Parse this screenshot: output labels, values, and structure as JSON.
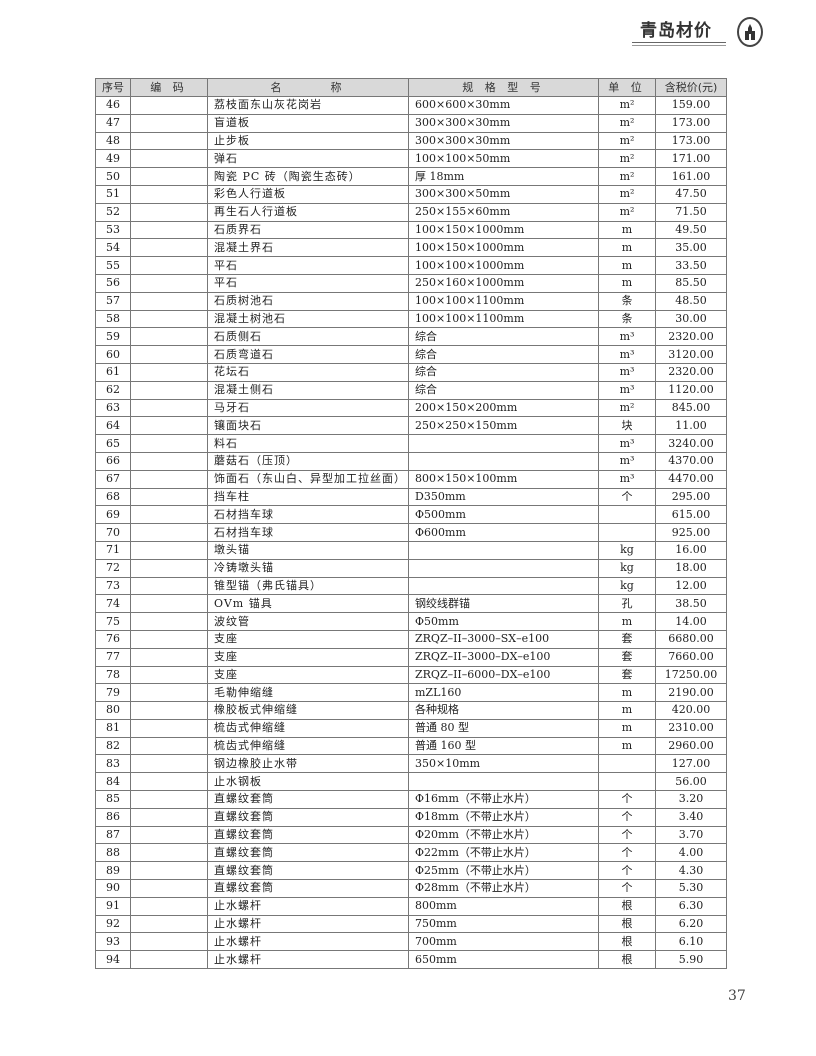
{
  "header": {
    "brand": "青岛材价",
    "logo_icon": "building-emblem-icon"
  },
  "table": {
    "columns": [
      "序号",
      "编 码",
      "名　　　称",
      "规 格 型 号",
      "单 位",
      "含税价(元)"
    ],
    "rows": [
      [
        "46",
        "",
        "荔枝面东山灰花岗岩",
        "600×600×30mm",
        "m²",
        "159.00"
      ],
      [
        "47",
        "",
        "盲道板",
        "300×300×30mm",
        "m²",
        "173.00"
      ],
      [
        "48",
        "",
        "止步板",
        "300×300×30mm",
        "m²",
        "173.00"
      ],
      [
        "49",
        "",
        "弹石",
        "100×100×50mm",
        "m²",
        "171.00"
      ],
      [
        "50",
        "",
        "陶瓷 PC 砖（陶瓷生态砖）",
        "厚 18mm",
        "m²",
        "161.00"
      ],
      [
        "51",
        "",
        "彩色人行道板",
        "300×300×50mm",
        "m²",
        "47.50"
      ],
      [
        "52",
        "",
        "再生石人行道板",
        "250×155×60mm",
        "m²",
        "71.50"
      ],
      [
        "53",
        "",
        "石质界石",
        "100×150×1000mm",
        "m",
        "49.50"
      ],
      [
        "54",
        "",
        "混凝土界石",
        "100×150×1000mm",
        "m",
        "35.00"
      ],
      [
        "55",
        "",
        "平石",
        "100×100×1000mm",
        "m",
        "33.50"
      ],
      [
        "56",
        "",
        "平石",
        "250×160×1000mm",
        "m",
        "85.50"
      ],
      [
        "57",
        "",
        "石质树池石",
        "100×100×1100mm",
        "条",
        "48.50"
      ],
      [
        "58",
        "",
        "混凝土树池石",
        "100×100×1100mm",
        "条",
        "30.00"
      ],
      [
        "59",
        "",
        "石质侧石",
        "综合",
        "m³",
        "2320.00"
      ],
      [
        "60",
        "",
        "石质弯道石",
        "综合",
        "m³",
        "3120.00"
      ],
      [
        "61",
        "",
        "花坛石",
        "综合",
        "m³",
        "2320.00"
      ],
      [
        "62",
        "",
        "混凝土侧石",
        "综合",
        "m³",
        "1120.00"
      ],
      [
        "63",
        "",
        "马牙石",
        "200×150×200mm",
        "m²",
        "845.00"
      ],
      [
        "64",
        "",
        "镶面块石",
        "250×250×150mm",
        "块",
        "11.00"
      ],
      [
        "65",
        "",
        "料石",
        "",
        "m³",
        "3240.00"
      ],
      [
        "66",
        "",
        "蘑菇石（压顶）",
        "",
        "m³",
        "4370.00"
      ],
      [
        "67",
        "",
        "饰面石（东山白、异型加工拉丝面）",
        "800×150×100mm",
        "m³",
        "4470.00"
      ],
      [
        "68",
        "",
        "挡车柱",
        "D350mm",
        "个",
        "295.00"
      ],
      [
        "69",
        "",
        "石材挡车球",
        "Φ500mm",
        "",
        "615.00"
      ],
      [
        "70",
        "",
        "石材挡车球",
        "Φ600mm",
        "",
        "925.00"
      ],
      [
        "71",
        "",
        "墩头锚",
        "",
        "kg",
        "16.00"
      ],
      [
        "72",
        "",
        "冷铸墩头锚",
        "",
        "kg",
        "18.00"
      ],
      [
        "73",
        "",
        "锥型锚（弗氏锚具）",
        "",
        "kg",
        "12.00"
      ],
      [
        "74",
        "",
        "OVm 锚具",
        "钢绞线群锚",
        "孔",
        "38.50"
      ],
      [
        "75",
        "",
        "波纹管",
        "Φ50mm",
        "m",
        "14.00"
      ],
      [
        "76",
        "",
        "支座",
        "ZRQZ–II–3000–SX–e100",
        "套",
        "6680.00"
      ],
      [
        "77",
        "",
        "支座",
        "ZRQZ–II–3000–DX–e100",
        "套",
        "7660.00"
      ],
      [
        "78",
        "",
        "支座",
        "ZRQZ–II–6000–DX–e100",
        "套",
        "17250.00"
      ],
      [
        "79",
        "",
        "毛勒伸缩缝",
        "mZL160",
        "m",
        "2190.00"
      ],
      [
        "80",
        "",
        "橡胶板式伸缩缝",
        "各种规格",
        "m",
        "420.00"
      ],
      [
        "81",
        "",
        "梳齿式伸缩缝",
        "普通 80 型",
        "m",
        "2310.00"
      ],
      [
        "82",
        "",
        "梳齿式伸缩缝",
        "普通 160 型",
        "m",
        "2960.00"
      ],
      [
        "83",
        "",
        "钢边橡胶止水带",
        "350×10mm",
        "",
        "127.00"
      ],
      [
        "84",
        "",
        "止水钢板",
        "",
        "",
        "56.00"
      ],
      [
        "85",
        "",
        "直螺纹套筒",
        "Φ16mm（不带止水片）",
        "个",
        "3.20"
      ],
      [
        "86",
        "",
        "直螺纹套筒",
        "Φ18mm（不带止水片）",
        "个",
        "3.40"
      ],
      [
        "87",
        "",
        "直螺纹套筒",
        "Φ20mm（不带止水片）",
        "个",
        "3.70"
      ],
      [
        "88",
        "",
        "直螺纹套筒",
        "Φ22mm（不带止水片）",
        "个",
        "4.00"
      ],
      [
        "89",
        "",
        "直螺纹套筒",
        "Φ25mm（不带止水片）",
        "个",
        "4.30"
      ],
      [
        "90",
        "",
        "直螺纹套筒",
        "Φ28mm（不带止水片）",
        "个",
        "5.30"
      ],
      [
        "91",
        "",
        "止水螺杆",
        "800mm",
        "根",
        "6.30"
      ],
      [
        "92",
        "",
        "止水螺杆",
        "750mm",
        "根",
        "6.20"
      ],
      [
        "93",
        "",
        "止水螺杆",
        "700mm",
        "根",
        "6.10"
      ],
      [
        "94",
        "",
        "止水螺杆",
        "650mm",
        "根",
        "5.90"
      ]
    ]
  },
  "footer": {
    "page_number": "37"
  }
}
